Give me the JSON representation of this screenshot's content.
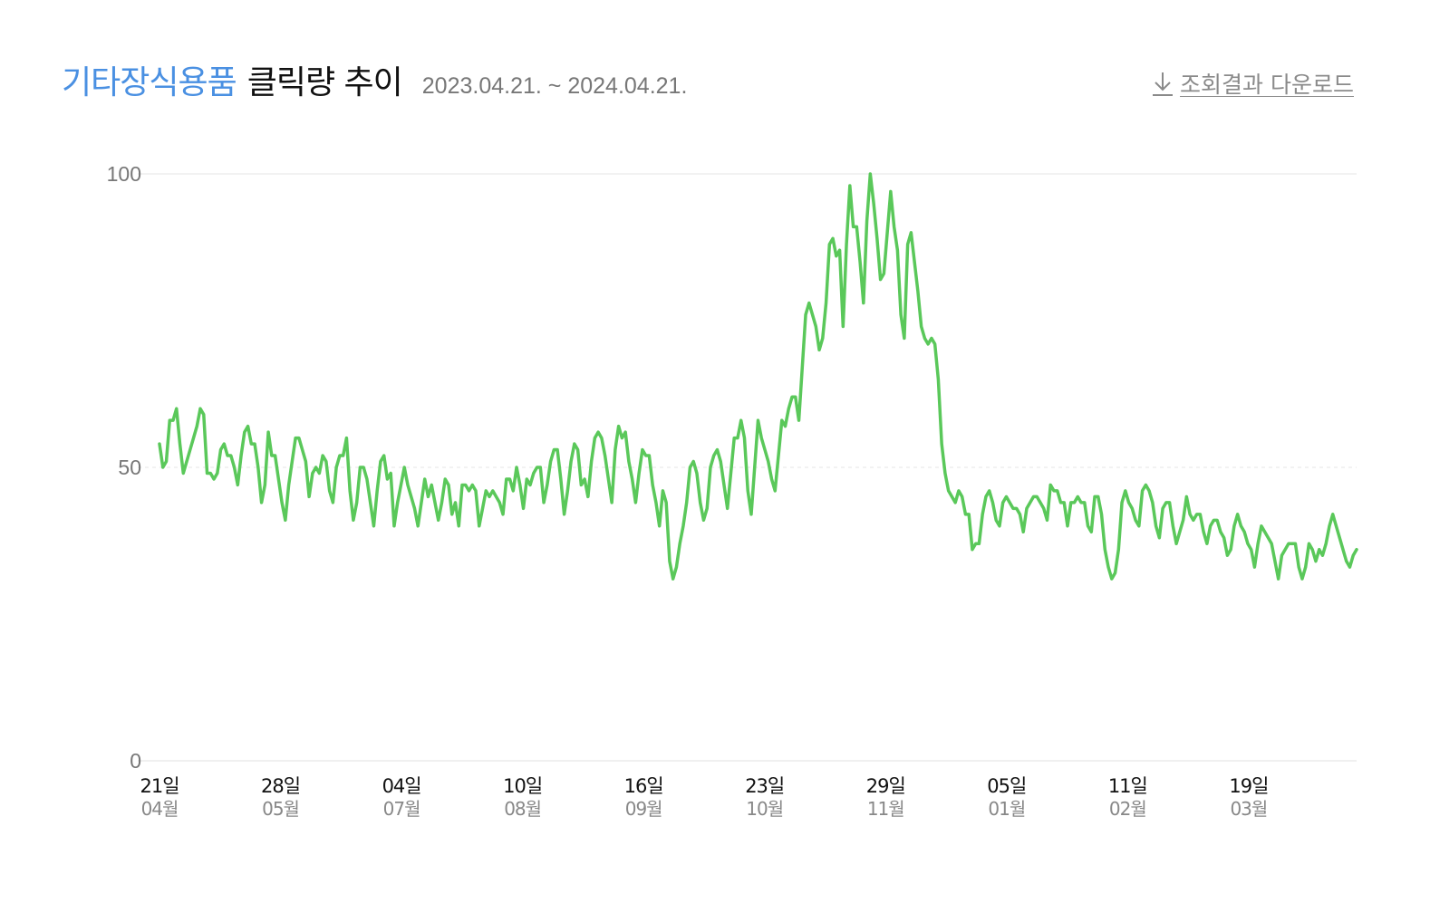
{
  "header": {
    "category": "기타장식용품",
    "title": "클릭량 추이",
    "date_range": "2023.04.21. ~ 2024.04.21.",
    "download_label": "조회결과 다운로드",
    "download_icon": "download-arrow-icon"
  },
  "colors": {
    "line": "#5ac85a",
    "category": "#4a90e2",
    "grid": "#e6e6e6",
    "tick_text": "#666666"
  },
  "chart_data": {
    "type": "line",
    "title": "클릭량 추이",
    "xlabel": "",
    "ylabel": "",
    "ylim": [
      0,
      100
    ],
    "y_ticks": [
      "0",
      "50",
      "100"
    ],
    "grid": "horizontal",
    "x_range": [
      "2023-04-21",
      "2024-04-21"
    ],
    "x_ticks": [
      {
        "date": "2023-04-21",
        "day": "21일",
        "month": "04월"
      },
      {
        "date": "2023-05-28",
        "day": "28일",
        "month": "05월"
      },
      {
        "date": "2023-07-04",
        "day": "04일",
        "month": "07월"
      },
      {
        "date": "2023-08-10",
        "day": "10일",
        "month": "08월"
      },
      {
        "date": "2023-09-16",
        "day": "16일",
        "month": "09월"
      },
      {
        "date": "2023-10-23",
        "day": "23일",
        "month": "10월"
      },
      {
        "date": "2023-11-29",
        "day": "29일",
        "month": "11월"
      },
      {
        "date": "2024-01-05",
        "day": "05일",
        "month": "01월"
      },
      {
        "date": "2024-02-11",
        "day": "11일",
        "month": "02월"
      },
      {
        "date": "2024-03-19",
        "day": "19일",
        "month": "03월"
      }
    ],
    "series": [
      {
        "values": [
          54,
          50,
          51,
          58,
          58,
          60,
          54,
          49,
          51,
          53,
          55,
          57,
          60,
          59,
          49,
          49,
          48,
          49,
          53,
          54,
          52,
          52,
          50,
          47,
          52,
          56,
          57,
          54,
          54,
          50,
          44,
          47,
          56,
          52,
          52,
          48,
          44,
          41,
          47,
          51,
          55,
          55,
          53,
          51,
          45,
          49,
          50,
          49,
          52,
          51,
          46,
          44,
          50,
          52,
          52,
          55,
          46,
          41,
          44,
          50,
          50,
          48,
          44,
          40,
          46,
          51,
          52,
          48,
          49,
          40,
          44,
          47,
          50,
          47,
          45,
          43,
          40,
          44,
          48,
          45,
          47,
          44,
          41,
          44,
          48,
          47,
          42,
          44,
          40,
          47,
          47,
          46,
          47,
          46,
          40,
          43,
          46,
          45,
          46,
          45,
          44,
          42,
          48,
          48,
          46,
          50,
          47,
          43,
          48,
          47,
          49,
          50,
          50,
          44,
          47,
          51,
          53,
          53,
          48,
          42,
          46,
          51,
          54,
          53,
          47,
          48,
          45,
          51,
          55,
          56,
          55,
          52,
          48,
          44,
          53,
          57,
          55,
          56,
          51,
          48,
          44,
          49,
          53,
          52,
          52,
          47,
          44,
          40,
          46,
          44,
          34,
          31,
          33,
          37,
          40,
          44,
          50,
          51,
          49,
          44,
          41,
          43,
          50,
          52,
          53,
          51,
          47,
          43,
          49,
          55,
          55,
          58,
          55,
          46,
          42,
          50,
          58,
          55,
          53,
          51,
          48,
          46,
          52,
          58,
          57,
          60,
          62,
          62,
          58,
          67,
          76,
          78,
          76,
          74,
          70,
          72,
          78,
          88,
          89,
          86,
          87,
          74,
          88,
          98,
          91,
          91,
          85,
          78,
          92,
          100,
          95,
          89,
          82,
          83,
          90,
          97,
          91,
          87,
          76,
          72,
          88,
          90,
          85,
          80,
          74,
          72,
          71,
          72,
          71,
          65,
          54,
          49,
          46,
          45,
          44,
          46,
          45,
          42,
          42,
          36,
          37,
          37,
          42,
          45,
          46,
          44,
          41,
          40,
          44,
          45,
          44,
          43,
          43,
          42,
          39,
          43,
          44,
          45,
          45,
          44,
          43,
          41,
          47,
          46,
          46,
          44,
          44,
          40,
          44,
          44,
          45,
          44,
          44,
          40,
          39,
          45,
          45,
          42,
          36,
          33,
          31,
          32,
          36,
          44,
          46,
          44,
          43,
          41,
          40,
          46,
          47,
          46,
          44,
          40,
          38,
          43,
          44,
          44,
          40,
          37,
          39,
          41,
          45,
          42,
          41,
          42,
          42,
          39,
          37,
          40,
          41,
          41,
          39,
          38,
          35,
          36,
          40,
          42,
          40,
          39,
          37,
          36,
          33,
          37,
          40,
          39,
          38,
          37,
          34,
          31,
          35,
          36,
          37,
          37,
          37,
          33,
          31,
          33,
          37,
          36,
          34,
          36,
          35,
          37,
          40,
          42,
          40,
          38,
          36,
          34,
          33,
          35,
          36
        ]
      }
    ]
  }
}
